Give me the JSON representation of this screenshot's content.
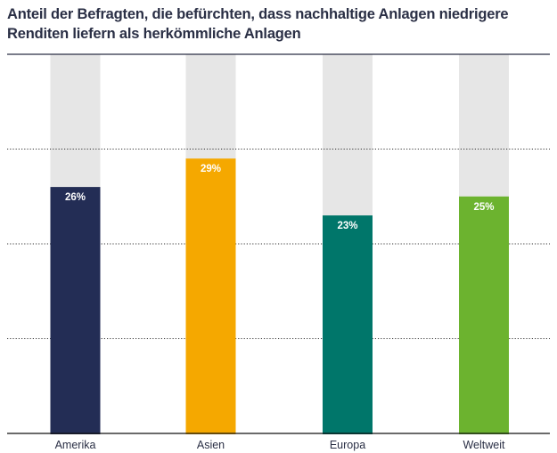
{
  "chart_data": {
    "type": "bar",
    "title": "Anteil der Befragten, die befürchten, dass nachhaltige Anlagen niedrigere Renditen liefern als herkömmliche Anlagen",
    "categories": [
      "Amerika",
      "Asien",
      "Europa",
      "Weltweit"
    ],
    "values": [
      26,
      29,
      23,
      25
    ],
    "data_labels": [
      "26%",
      "29%",
      "23%",
      "25%"
    ],
    "colors": [
      "#232d55",
      "#f5a800",
      "#00766a",
      "#6cb32f"
    ],
    "background_bar_color": "#e6e6e6",
    "xlabel": "",
    "ylabel": "",
    "ylim": [
      0,
      40
    ],
    "gridlines": [
      10,
      20,
      30
    ],
    "grid": true,
    "legend": "none"
  }
}
